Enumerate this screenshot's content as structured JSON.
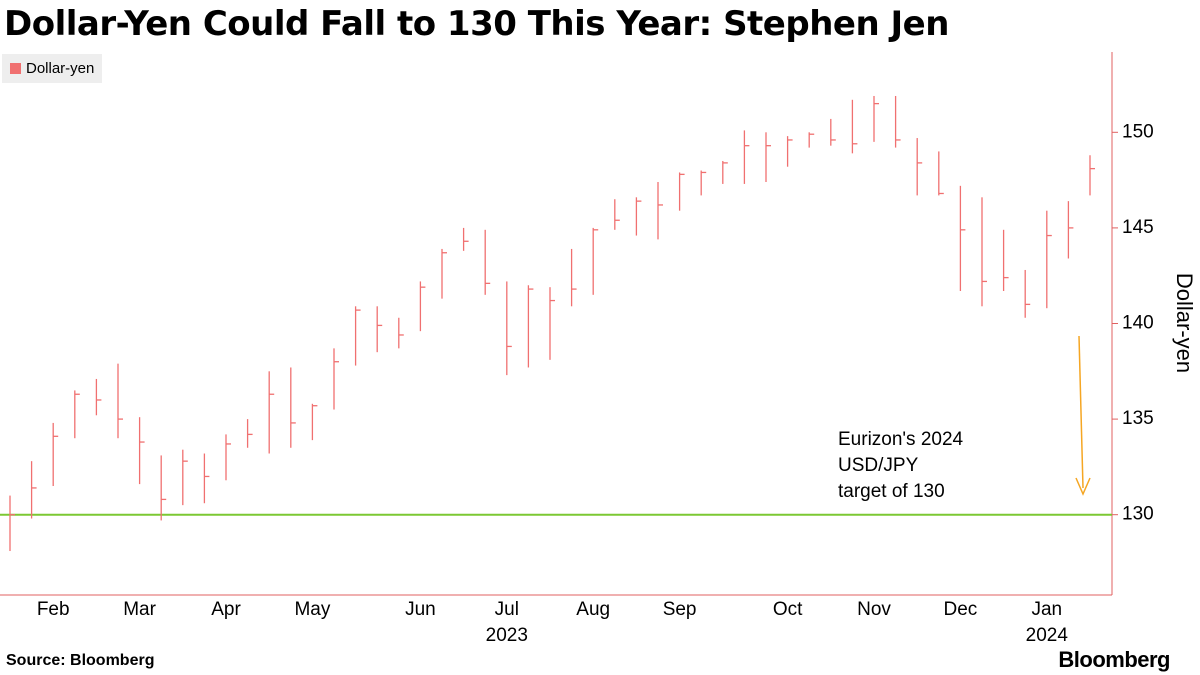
{
  "chart_data": {
    "type": "ohlc",
    "title": "Dollar-Yen Could Fall to 130 This Year: Stephen Jen",
    "y_axis_label": "Dollar-yen",
    "source": "Source: Bloomberg",
    "brand": "Bloomberg",
    "annotation": "Eurizon's 2024\nUSD/JPY\ntarget of 130",
    "target_line": {
      "value": 130,
      "color": "#7cc832"
    },
    "categories": [
      null,
      null,
      "Feb",
      null,
      null,
      null,
      "Mar",
      null,
      null,
      null,
      "Apr",
      null,
      null,
      null,
      "May",
      null,
      null,
      null,
      null,
      "Jun",
      null,
      null,
      null,
      "Jul\n2023",
      null,
      null,
      null,
      "Aug",
      null,
      null,
      null,
      "Sep",
      null,
      null,
      null,
      null,
      "Oct",
      null,
      null,
      null,
      "Nov",
      null,
      null,
      null,
      "Dec",
      null,
      null,
      null,
      "Jan\n2024",
      null,
      null
    ],
    "series": [
      {
        "name": "Dollar-yen",
        "color": "#f07070",
        "values": [
          130,
          131.4,
          134.1,
          136.3,
          136,
          135,
          133.8,
          130.8,
          132.8,
          132,
          133.7,
          134.2,
          136.3,
          134.8,
          135.7,
          138,
          140.7,
          139.9,
          139.4,
          141.9,
          143.7,
          144.3,
          142.1,
          138.8,
          141.8,
          141.2,
          141.8,
          144.9,
          145.4,
          146.4,
          146.2,
          147.8,
          147.9,
          148.4,
          149.3,
          149.3,
          149.6,
          149.9,
          149.6,
          149.4,
          151.5,
          149.6,
          148.4,
          146.8,
          144.9,
          142.2,
          142.4,
          141,
          144.6,
          145,
          148.1
        ],
        "high": [
          131,
          132.8,
          134.8,
          136.5,
          137.1,
          137.9,
          135.1,
          133.1,
          133.4,
          133.2,
          134.2,
          135,
          137.5,
          137.7,
          135.8,
          138.7,
          140.9,
          140.9,
          140.3,
          142.2,
          143.9,
          145,
          144.9,
          142.2,
          142,
          141.9,
          143.9,
          145,
          146.5,
          146.6,
          147.4,
          147.9,
          148,
          148.5,
          150.1,
          150,
          149.8,
          150,
          150.7,
          151.7,
          151.9,
          151.9,
          149.7,
          149,
          147.2,
          146.6,
          144.9,
          142.8,
          145.9,
          146.4,
          148.8
        ],
        "low": [
          128.1,
          129.8,
          131.5,
          134,
          135.2,
          134,
          131.6,
          129.7,
          130.5,
          130.6,
          131.8,
          133.5,
          133.2,
          133.5,
          133.9,
          135.5,
          137.8,
          138.5,
          138.7,
          139.6,
          141.3,
          143.8,
          141.5,
          137.3,
          137.7,
          138.1,
          140.9,
          141.5,
          144.9,
          144.6,
          144.4,
          145.9,
          146.7,
          147.3,
          147.3,
          147.4,
          148.2,
          149.2,
          149.3,
          148.9,
          149.5,
          149.2,
          146.7,
          146.7,
          141.7,
          140.9,
          141.7,
          140.3,
          140.8,
          143.4,
          146.7
        ]
      }
    ],
    "ylim": [
      125.8,
      154.2
    ],
    "yticks": [
      130,
      135,
      140,
      145,
      150
    ],
    "legend": "top-left"
  }
}
